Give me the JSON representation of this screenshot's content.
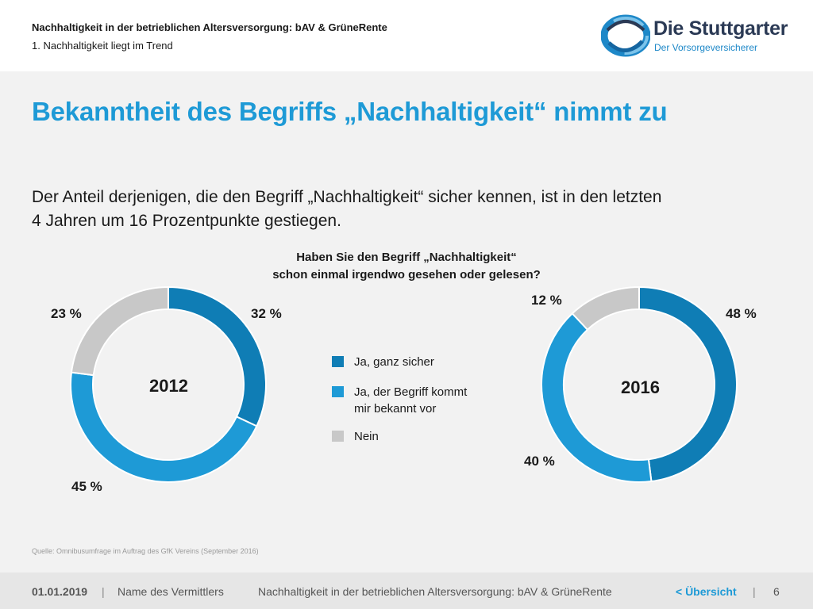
{
  "header": {
    "title": "Nachhaltigkeit in der betrieblichen Altersversorgung: bAV & GrüneRente",
    "subtitle": "1. Nachhaltigkeit liegt im Trend"
  },
  "logo": {
    "name": "Die Stuttgarter",
    "tagline": "Der Vorsorgeversicherer",
    "colors": {
      "primary": "#1e88c8",
      "dark": "#2b3a55"
    }
  },
  "headline": "Bekanntheit des Begriffs „Nachhaltigkeit“ nimmt zu",
  "lead": {
    "line1": "Der Anteil derjenigen, die den Begriff „Nachhaltigkeit“ sicher kennen, ist in den letzten",
    "line2": "4 Jahren um 16 Prozentpunkte gestiegen."
  },
  "question": {
    "line1": "Haben Sie den Begriff „Nachhaltigkeit“",
    "line2": "schon einmal irgendwo gesehen oder gelesen?"
  },
  "chart_data": [
    {
      "type": "pie",
      "variant": "donut",
      "center_label": "2012",
      "categories": [
        "Ja, ganz sicher",
        "Ja, der Begriff kommt mir bekannt vor",
        "Nein"
      ],
      "values": [
        32,
        45,
        23
      ],
      "labels": [
        "32 %",
        "45 %",
        "23 %"
      ],
      "colors": [
        "#0f7db5",
        "#1e9ad6",
        "#c8c8c8"
      ]
    },
    {
      "type": "pie",
      "variant": "donut",
      "center_label": "2016",
      "categories": [
        "Ja, ganz sicher",
        "Ja, der Begriff kommt mir bekannt vor",
        "Nein"
      ],
      "values": [
        48,
        40,
        12
      ],
      "labels": [
        "48 %",
        "40 %",
        "12 %"
      ],
      "colors": [
        "#0f7db5",
        "#1e9ad6",
        "#c8c8c8"
      ]
    }
  ],
  "legend": [
    {
      "line1": "Ja, ganz sicher",
      "line2": "",
      "color": "#0f7db5"
    },
    {
      "line1": "Ja, der Begriff kommt",
      "line2": "mir bekannt vor",
      "color": "#1e9ad6"
    },
    {
      "line1": "Nein",
      "line2": "",
      "color": "#c8c8c8"
    }
  ],
  "source": "Quelle: Omnibusumfrage im Auftrag des GfK Vereins (September 2016)",
  "footer": {
    "date": "01.01.2019",
    "separator": "|",
    "agent": "Name des Vermittlers",
    "doc_title": "Nachhaltigkeit in der betrieblichen Altersversorgung: bAV & GrüneRente",
    "back_link": "< Übersicht",
    "page": "6"
  }
}
